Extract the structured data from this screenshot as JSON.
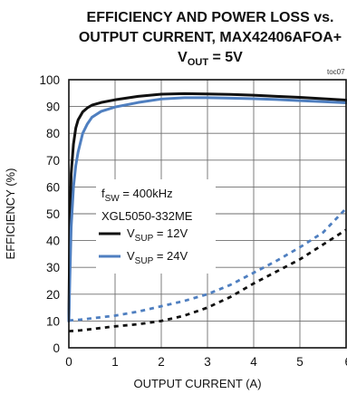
{
  "chart_data": {
    "type": "line",
    "title": {
      "line1": "EFFICIENCY AND POWER LOSS vs.",
      "line2": "OUTPUT CURRENT, MAX42406AFOA+",
      "line3_main": "V",
      "line3_sub": "OUT",
      "line3_rest": " = 5V"
    },
    "figure_id": "toc07",
    "xlabel": "OUTPUT CURRENT (A)",
    "ylabel": "EFFICIENCY (%)",
    "xlim": [
      0,
      6
    ],
    "ylim": [
      0,
      100
    ],
    "xticks": [
      "0",
      "1",
      "2",
      "3",
      "4",
      "5",
      "6"
    ],
    "yticks": [
      "0",
      "10",
      "20",
      "30",
      "40",
      "50",
      "60",
      "70",
      "80",
      "90",
      "100"
    ],
    "grid": true,
    "annotation": {
      "fsw_main": "f",
      "fsw_sub": "SW",
      "fsw_rest": " = 400kHz",
      "inductor": "XGL5050-332ME"
    },
    "legend": [
      {
        "main": "V",
        "sub": "SUP",
        "rest": " = 12V",
        "color": "#111111"
      },
      {
        "main": "V",
        "sub": "SUP",
        "rest": " = 24V",
        "color": "#4f7fc0"
      }
    ],
    "series": [
      {
        "name": "VSUP = 12V",
        "kind": "efficiency",
        "color": "#111111",
        "dash": false,
        "x": [
          0,
          0.02,
          0.05,
          0.1,
          0.15,
          0.2,
          0.3,
          0.4,
          0.5,
          0.7,
          1.0,
          1.5,
          2.0,
          2.5,
          3.0,
          3.5,
          4.0,
          4.5,
          5.0,
          5.5,
          6.0
        ],
        "y": [
          10,
          45,
          65,
          76,
          82,
          85,
          88,
          89.5,
          90.5,
          91.5,
          92.5,
          93.8,
          94.6,
          94.8,
          94.7,
          94.5,
          94.2,
          93.8,
          93.4,
          92.9,
          92.4
        ]
      },
      {
        "name": "VSUP = 24V",
        "kind": "efficiency",
        "color": "#4f7fc0",
        "dash": false,
        "x": [
          0,
          0.02,
          0.05,
          0.1,
          0.15,
          0.2,
          0.3,
          0.4,
          0.5,
          0.7,
          1.0,
          1.5,
          2.0,
          2.5,
          3.0,
          3.5,
          4.0,
          4.5,
          5.0,
          5.5,
          6.0
        ],
        "y": [
          10,
          25,
          45,
          60,
          68,
          73,
          80,
          83.5,
          86,
          88.2,
          89.8,
          91.5,
          92.8,
          93.3,
          93.3,
          93.1,
          92.9,
          92.6,
          92.2,
          91.8,
          91.4
        ]
      },
      {
        "name": "VSUP = 12V",
        "kind": "power-loss",
        "color": "#111111",
        "dash": true,
        "x": [
          0,
          0.25,
          0.5,
          1.0,
          1.5,
          2.0,
          2.5,
          3.0,
          3.5,
          4.0,
          4.5,
          5.0,
          5.5,
          6.0
        ],
        "y": [
          6.2,
          6.5,
          7,
          8,
          8.8,
          10,
          12,
          15,
          19,
          24,
          28.5,
          33,
          38.5,
          44
        ]
      },
      {
        "name": "VSUP = 24V",
        "kind": "power-loss",
        "color": "#4f7fc0",
        "dash": true,
        "x": [
          0,
          0.25,
          0.5,
          1.0,
          1.5,
          2.0,
          2.5,
          3.0,
          3.5,
          4.0,
          4.5,
          5.0,
          5.5,
          6.0
        ],
        "y": [
          10.2,
          10.5,
          11,
          12,
          13.5,
          15.5,
          17.5,
          20,
          23.5,
          28,
          32.5,
          37.5,
          43,
          52
        ]
      }
    ]
  }
}
